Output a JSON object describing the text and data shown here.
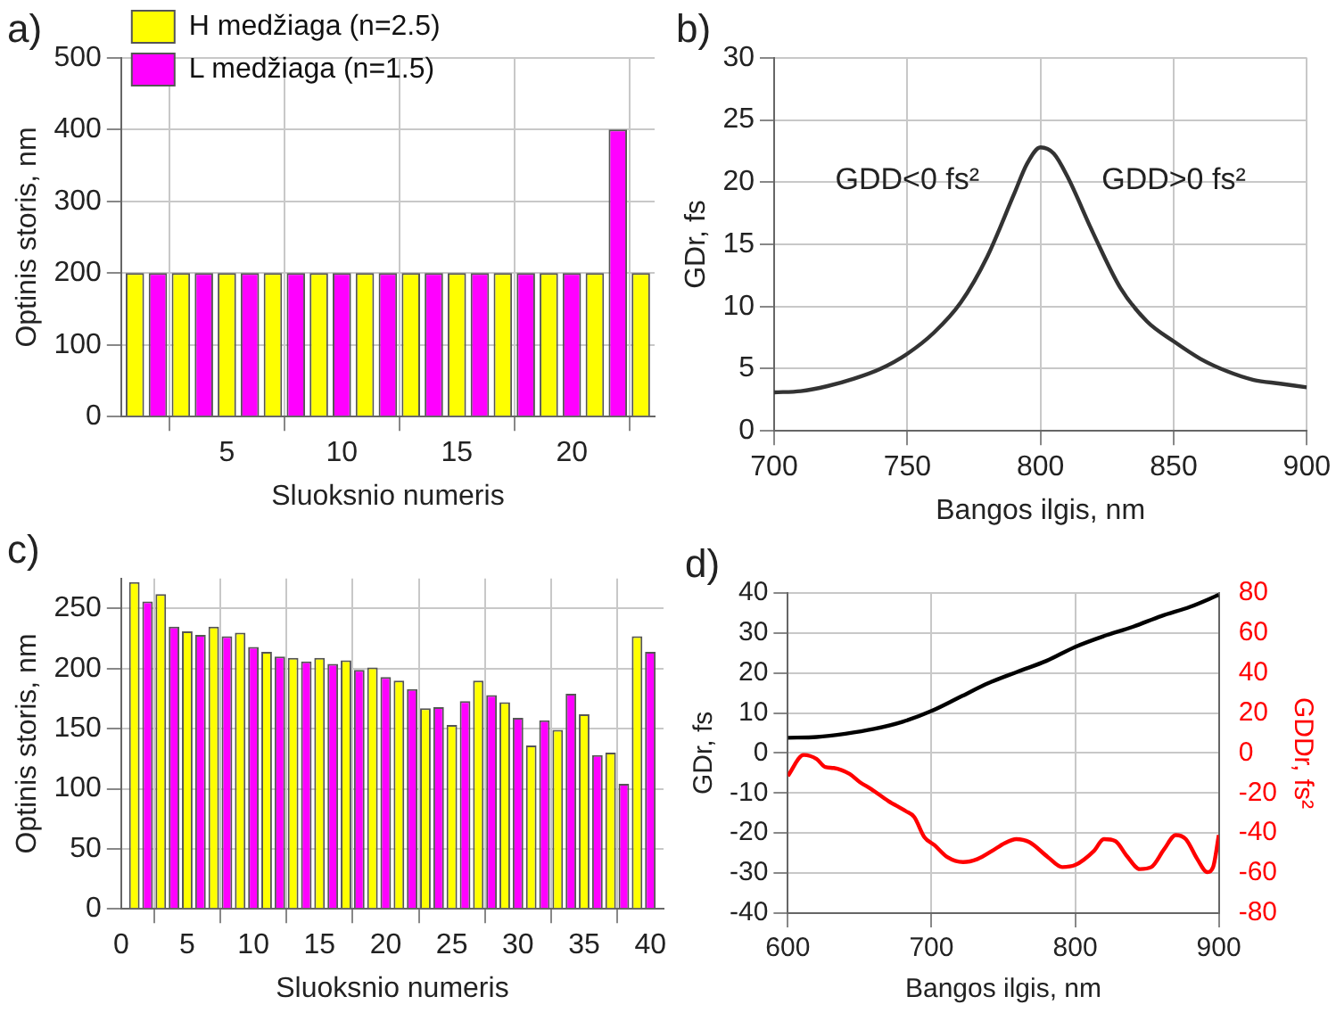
{
  "chart_data": [
    {
      "type": "bar",
      "title": "a)",
      "xlabel": "Sluoksnio numeris",
      "ylabel": "Optinis storis, nm",
      "xlim": [
        0.4,
        23.6
      ],
      "xticks": [
        5,
        10,
        15,
        20
      ],
      "ylim": [
        0,
        500
      ],
      "yticks": [
        0,
        100,
        200,
        300,
        400,
        500
      ],
      "grid": true,
      "legend": "top left",
      "series": [
        {
          "name": "H medžiaga (n=2.5)",
          "color": "#ffff00",
          "x": [
            1,
            3,
            5,
            7,
            9,
            11,
            13,
            15,
            17,
            19,
            21,
            23
          ],
          "values": [
            200,
            200,
            200,
            200,
            200,
            200,
            200,
            200,
            200,
            200,
            200,
            200
          ]
        },
        {
          "name": "L medžiaga (n=1.5)",
          "color": "#ff00ff",
          "x": [
            2,
            4,
            6,
            8,
            10,
            12,
            14,
            16,
            18,
            20,
            22
          ],
          "values": [
            200,
            200,
            200,
            200,
            200,
            200,
            200,
            200,
            200,
            200,
            400
          ]
        }
      ]
    },
    {
      "type": "line",
      "title": "b)",
      "xlabel": "Bangos ilgis, nm",
      "ylabel": "GDr, fs",
      "xlim": [
        700,
        900
      ],
      "xticks": [
        700,
        750,
        800,
        850,
        900
      ],
      "ylim": [
        0,
        30
      ],
      "yticks": [
        0,
        5,
        10,
        15,
        20,
        25,
        30
      ],
      "grid": true,
      "annotations": [
        "GDD<0 fs²",
        "GDD>0 fs²"
      ],
      "series": [
        {
          "color": "#333333",
          "x": [
            700,
            710,
            720,
            730,
            740,
            750,
            760,
            770,
            780,
            790,
            795,
            800,
            805,
            810,
            820,
            830,
            840,
            850,
            860,
            870,
            880,
            890,
            900
          ],
          "values": [
            3.1,
            3.2,
            3.6,
            4.2,
            5.0,
            6.2,
            7.9,
            10.3,
            14.0,
            19.0,
            21.5,
            22.8,
            22.3,
            20.5,
            15.8,
            11.5,
            8.8,
            7.2,
            5.8,
            4.8,
            4.1,
            3.8,
            3.5
          ]
        }
      ]
    },
    {
      "type": "bar",
      "title": "c)",
      "xlabel": "Sluoksnio numeris",
      "ylabel": "Optinis storis, nm",
      "xlim": [
        0,
        41
      ],
      "xticks": [
        0,
        5,
        10,
        15,
        20,
        25,
        30,
        35,
        40
      ],
      "ylim": [
        0,
        275
      ],
      "yticks": [
        0,
        50,
        100,
        150,
        200,
        250
      ],
      "grid": true,
      "series": [
        {
          "color": "#ffff00",
          "x": [
            1,
            3,
            5,
            7,
            9,
            11,
            13,
            15,
            17,
            19,
            21,
            23,
            25,
            27,
            29,
            31,
            33,
            35,
            37,
            39
          ],
          "values": [
            272,
            262,
            231,
            235,
            230,
            214,
            209,
            209,
            207,
            201,
            190,
            167,
            153,
            190,
            172,
            136,
            149,
            162,
            130,
            227
          ]
        },
        {
          "color": "#ff00ff",
          "x": [
            2,
            4,
            6,
            8,
            10,
            12,
            14,
            16,
            18,
            20,
            22,
            24,
            26,
            28,
            30,
            32,
            34,
            36,
            38,
            40
          ],
          "values": [
            256,
            235,
            228,
            227,
            218,
            210,
            206,
            204,
            199,
            193,
            183,
            168,
            173,
            178,
            159,
            157,
            179,
            128,
            104,
            214
          ]
        }
      ]
    },
    {
      "type": "line",
      "title": "d)",
      "xlabel": "Bangos ilgis, nm",
      "ylabel": "GDr, fs",
      "y2label": "GDDr, fs²",
      "xlim": [
        600,
        900
      ],
      "xticks": [
        600,
        700,
        800,
        900
      ],
      "ylim": [
        -40,
        40
      ],
      "yticks": [
        -40,
        -30,
        -20,
        -10,
        0,
        10,
        20,
        30,
        40
      ],
      "y2lim": [
        -80,
        80
      ],
      "y2ticks": [
        -80,
        -60,
        -40,
        -20,
        0,
        20,
        40,
        60,
        80
      ],
      "grid": true,
      "series": [
        {
          "color": "#000000",
          "x": [
            600,
            620,
            640,
            660,
            680,
            700,
            720,
            740,
            760,
            780,
            800,
            820,
            840,
            860,
            880,
            900
          ],
          "values": [
            3.8,
            4,
            4.8,
            6,
            7.8,
            10.5,
            14,
            17.5,
            20.3,
            23,
            26.5,
            29.2,
            31.5,
            34.2,
            36.5,
            39.5
          ]
        },
        {
          "color": "#ff0000",
          "axis": "y2",
          "x": [
            600,
            611,
            620,
            626,
            632,
            643,
            650,
            658,
            670,
            682,
            688,
            695,
            702,
            711,
            722,
            732,
            742,
            751,
            759,
            768,
            781,
            791,
            800,
            813,
            820,
            828,
            836,
            845,
            853,
            862,
            870,
            877,
            885,
            892,
            896,
            900
          ],
          "values": [
            -11.5,
            -1,
            -3,
            -7,
            -7.5,
            -10.5,
            -14.5,
            -18,
            -24,
            -29,
            -32,
            -42,
            -46,
            -52,
            -54.5,
            -53,
            -49,
            -45,
            -43,
            -44.5,
            -52,
            -57,
            -56,
            -49,
            -43,
            -44,
            -51.5,
            -58,
            -57,
            -48,
            -41,
            -43,
            -53,
            -59.5,
            -57,
            -41
          ]
        }
      ]
    }
  ]
}
